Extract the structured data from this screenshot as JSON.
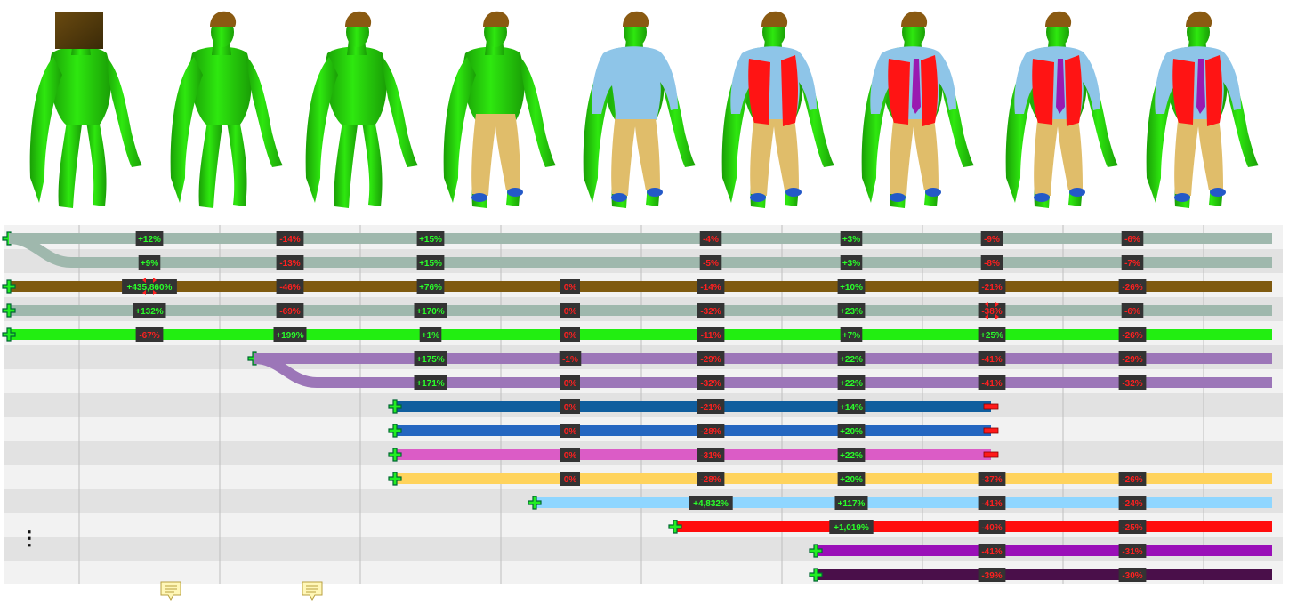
{
  "colors": {
    "skin": "#2ee80f",
    "skin_shade": "#1a9e06",
    "hair": "#8a5a12",
    "hoodie": "#8ec5e8",
    "pants": "#e0bd6a",
    "vest": "#ff1414",
    "tie": "#9a1ab0",
    "shoe": "#2459c8",
    "helmet": "#3a2a08",
    "row_even": "#f2f2f2",
    "row_odd": "#e2e2e2",
    "grid": "#bdbdbd",
    "tag_bg": "#333333",
    "tag_pos": "#2aff2a",
    "tag_neg": "#ff2020"
  },
  "figures": [
    {
      "name": "stage-1",
      "helmet": true,
      "hair": false,
      "pants": false,
      "hoodie": false,
      "vest": false,
      "tie": false,
      "shoes": false,
      "detail": 0
    },
    {
      "name": "stage-2",
      "helmet": false,
      "hair": true,
      "pants": false,
      "hoodie": false,
      "vest": false,
      "tie": false,
      "shoes": false,
      "detail": 1
    },
    {
      "name": "stage-3",
      "helmet": false,
      "hair": true,
      "pants": false,
      "hoodie": false,
      "vest": false,
      "tie": false,
      "shoes": false,
      "detail": 2
    },
    {
      "name": "stage-4",
      "helmet": false,
      "hair": true,
      "pants": true,
      "hoodie": false,
      "vest": false,
      "tie": false,
      "shoes": true,
      "detail": 2
    },
    {
      "name": "stage-5",
      "helmet": false,
      "hair": true,
      "pants": true,
      "hoodie": true,
      "vest": false,
      "tie": false,
      "shoes": true,
      "detail": 2
    },
    {
      "name": "stage-6",
      "helmet": false,
      "hair": true,
      "pants": true,
      "hoodie": true,
      "vest": true,
      "tie": false,
      "shoes": true,
      "detail": 2
    },
    {
      "name": "stage-7",
      "helmet": false,
      "hair": true,
      "pants": true,
      "hoodie": true,
      "vest": true,
      "tie": true,
      "shoes": true,
      "detail": 2
    },
    {
      "name": "stage-8",
      "helmet": false,
      "hair": true,
      "pants": true,
      "hoodie": true,
      "vest": true,
      "tie": true,
      "shoes": true,
      "detail": 3
    },
    {
      "name": "stage-9",
      "helmet": false,
      "hair": true,
      "pants": true,
      "hoodie": true,
      "vest": true,
      "tie": true,
      "shoes": true,
      "detail": 3
    }
  ],
  "timeline": {
    "columns": 9,
    "more_indicator": "⋮",
    "rows": [
      {
        "color": "#9fb8ad",
        "start": 0,
        "end": 9,
        "branch_to": 1,
        "ends_with_minus": false,
        "tags": [
          {
            "col": 1,
            "text": "+12%"
          },
          {
            "col": 2,
            "text": "-14%"
          },
          {
            "col": 3,
            "text": "+15%"
          },
          {
            "col": 5,
            "text": "-4%"
          },
          {
            "col": 6,
            "text": "+3%"
          },
          {
            "col": 7,
            "text": "-9%"
          },
          {
            "col": 8,
            "text": "-6%"
          }
        ]
      },
      {
        "color": "#9fb8ad",
        "start": 0,
        "end": 9,
        "branch_from": 0,
        "ends_with_minus": false,
        "tags": [
          {
            "col": 1,
            "text": "+9%"
          },
          {
            "col": 2,
            "text": "-13%"
          },
          {
            "col": 3,
            "text": "+15%"
          },
          {
            "col": 5,
            "text": "-5%"
          },
          {
            "col": 6,
            "text": "+3%"
          },
          {
            "col": 7,
            "text": "-8%"
          },
          {
            "col": 8,
            "text": "-7%"
          }
        ]
      },
      {
        "color": "#7f5a10",
        "start": 0,
        "end": 9,
        "ends_with_minus": false,
        "tags": [
          {
            "col": 1,
            "text": "+435,860%",
            "arrows": true
          },
          {
            "col": 2,
            "text": "-46%"
          },
          {
            "col": 3,
            "text": "+76%"
          },
          {
            "col": 4,
            "text": "0%"
          },
          {
            "col": 5,
            "text": "-14%"
          },
          {
            "col": 6,
            "text": "+10%"
          },
          {
            "col": 7,
            "text": "-21%"
          },
          {
            "col": 8,
            "text": "-26%"
          }
        ]
      },
      {
        "color": "#9fb8ad",
        "start": 0,
        "end": 9,
        "ends_with_minus": false,
        "tags": [
          {
            "col": 1,
            "text": "+132%"
          },
          {
            "col": 2,
            "text": "-69%"
          },
          {
            "col": 3,
            "text": "+170%"
          },
          {
            "col": 4,
            "text": "0%"
          },
          {
            "col": 5,
            "text": "-32%"
          },
          {
            "col": 6,
            "text": "+23%"
          },
          {
            "col": 7,
            "text": "-38%",
            "arrows": true
          },
          {
            "col": 8,
            "text": "-6%"
          }
        ]
      },
      {
        "color": "#22ee11",
        "start": 0,
        "end": 9,
        "ends_with_minus": false,
        "tags": [
          {
            "col": 1,
            "text": "-67%"
          },
          {
            "col": 2,
            "text": "+199%"
          },
          {
            "col": 3,
            "text": "+1%"
          },
          {
            "col": 4,
            "text": "0%"
          },
          {
            "col": 5,
            "text": "-11%"
          },
          {
            "col": 6,
            "text": "+7%"
          },
          {
            "col": 7,
            "text": "+25%"
          },
          {
            "col": 8,
            "text": "-26%"
          }
        ]
      },
      {
        "color": "#9c76b8",
        "start": 2,
        "end": 9,
        "branch_to": 6,
        "ends_with_minus": false,
        "tags": [
          {
            "col": 3,
            "text": "+175%"
          },
          {
            "col": 4,
            "text": "-1%"
          },
          {
            "col": 5,
            "text": "-29%"
          },
          {
            "col": 6,
            "text": "+22%"
          },
          {
            "col": 7,
            "text": "-41%"
          },
          {
            "col": 8,
            "text": "-29%"
          }
        ]
      },
      {
        "color": "#9c76b8",
        "start": 2,
        "end": 9,
        "branch_from": 5,
        "ends_with_minus": false,
        "tags": [
          {
            "col": 3,
            "text": "+171%"
          },
          {
            "col": 4,
            "text": "0%"
          },
          {
            "col": 5,
            "text": "-32%"
          },
          {
            "col": 6,
            "text": "+22%"
          },
          {
            "col": 7,
            "text": "-41%"
          },
          {
            "col": 8,
            "text": "-32%"
          }
        ]
      },
      {
        "color": "#105e9e",
        "start": 3,
        "end": 7,
        "ends_with_minus": true,
        "tags": [
          {
            "col": 4,
            "text": "0%"
          },
          {
            "col": 5,
            "text": "-21%"
          },
          {
            "col": 6,
            "text": "+14%"
          }
        ]
      },
      {
        "color": "#2466c0",
        "start": 3,
        "end": 7,
        "ends_with_minus": true,
        "tags": [
          {
            "col": 4,
            "text": "0%"
          },
          {
            "col": 5,
            "text": "-28%"
          },
          {
            "col": 6,
            "text": "+20%"
          }
        ]
      },
      {
        "color": "#db5cc6",
        "start": 3,
        "end": 7,
        "ends_with_minus": true,
        "tags": [
          {
            "col": 4,
            "text": "0%"
          },
          {
            "col": 5,
            "text": "-31%"
          },
          {
            "col": 6,
            "text": "+22%"
          }
        ]
      },
      {
        "color": "#ffd35c",
        "start": 3,
        "end": 9,
        "ends_with_minus": false,
        "tags": [
          {
            "col": 4,
            "text": "0%"
          },
          {
            "col": 5,
            "text": "-28%"
          },
          {
            "col": 6,
            "text": "+20%"
          },
          {
            "col": 7,
            "text": "-37%"
          },
          {
            "col": 8,
            "text": "-26%"
          }
        ]
      },
      {
        "color": "#8fd6ff",
        "start": 4,
        "end": 9,
        "ends_with_minus": false,
        "tags": [
          {
            "col": 5,
            "text": "+4,832%"
          },
          {
            "col": 6,
            "text": "+117%"
          },
          {
            "col": 7,
            "text": "-41%"
          },
          {
            "col": 8,
            "text": "-24%"
          }
        ]
      },
      {
        "color": "#ff0d0d",
        "start": 5,
        "end": 9,
        "ends_with_minus": false,
        "tags": [
          {
            "col": 6,
            "text": "+1,019%"
          },
          {
            "col": 7,
            "text": "-40%"
          },
          {
            "col": 8,
            "text": "-25%"
          }
        ]
      },
      {
        "color": "#9a0fb8",
        "start": 6,
        "end": 9,
        "ends_with_minus": false,
        "tags": [
          {
            "col": 7,
            "text": "-41%"
          },
          {
            "col": 8,
            "text": "-31%"
          }
        ]
      },
      {
        "color": "#4a0f4a",
        "start": 6,
        "end": 9,
        "ends_with_minus": false,
        "tags": [
          {
            "col": 7,
            "text": "-39%"
          },
          {
            "col": 8,
            "text": "-30%"
          }
        ]
      }
    ]
  },
  "comments": [
    {
      "name": "comment-icon-1",
      "icon": "speech-bubble"
    },
    {
      "name": "comment-icon-2",
      "icon": "speech-bubble"
    }
  ]
}
